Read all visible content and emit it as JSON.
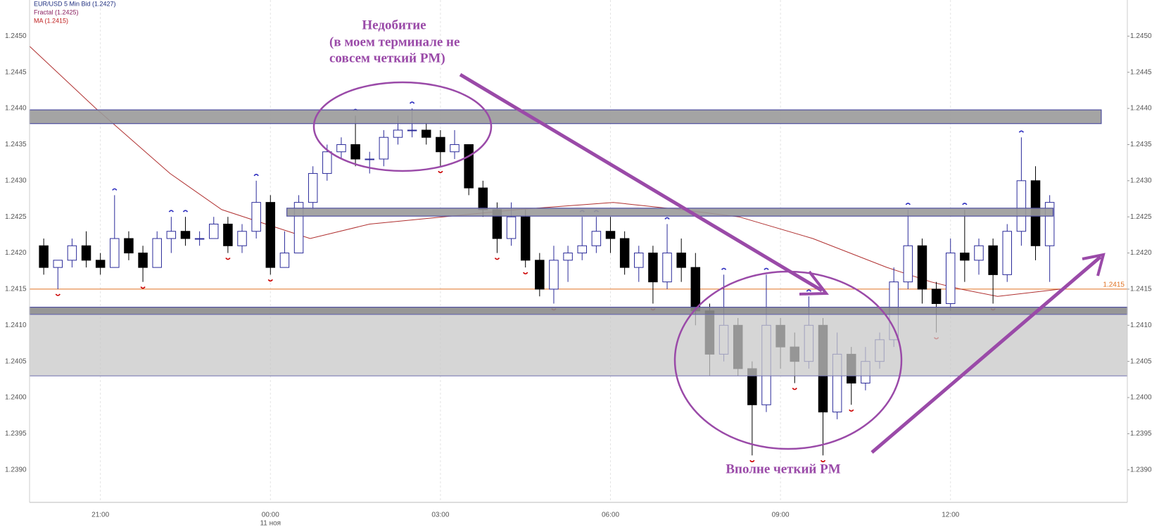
{
  "chart_data": {
    "type": "candlestick",
    "header": [
      "EUR/USD 5 Min Bid (1.2427)",
      "Fractal (1.2425)",
      "MA (1.2415)"
    ],
    "date_label": "11 ноя",
    "xlim": [
      -4.25,
      15.12
    ],
    "xticks": [
      {
        "value": -3,
        "label": "21:00"
      },
      {
        "value": 0,
        "label": "00:00"
      },
      {
        "value": 3,
        "label": "03:00"
      },
      {
        "value": 6,
        "label": "06:00"
      },
      {
        "value": 9,
        "label": "09:00"
      },
      {
        "value": 12,
        "label": "12:00"
      }
    ],
    "ylim": [
      1.23855,
      1.2455
    ],
    "yticks": [
      {
        "value": 1.239,
        "label": "1.2390"
      },
      {
        "value": 1.2395,
        "label": "1.2395"
      },
      {
        "value": 1.24,
        "label": "1.2400"
      },
      {
        "value": 1.2405,
        "label": "1.2405"
      },
      {
        "value": 1.241,
        "label": "1.2410"
      },
      {
        "value": 1.2415,
        "label": "1.2415"
      },
      {
        "value": 1.242,
        "label": "1.2420"
      },
      {
        "value": 1.2425,
        "label": "1.2425"
      },
      {
        "value": 1.243,
        "label": "1.2430"
      },
      {
        "value": 1.2435,
        "label": "1.2435"
      },
      {
        "value": 1.244,
        "label": "1.2440"
      },
      {
        "value": 1.2445,
        "label": "1.2445"
      },
      {
        "value": 1.245,
        "label": "1.2450"
      }
    ],
    "grid": true,
    "up_color": "#2b2b9a",
    "down_color": "#000000",
    "candles": {
      "x": [
        -4,
        -3.75,
        -3.5,
        -3.25,
        -3,
        -2.75,
        -2.5,
        -2.25,
        -2,
        -1.75,
        -1.5,
        -1.25,
        -1,
        -0.75,
        -0.5,
        -0.25,
        0,
        0.25,
        0.5,
        0.75,
        1,
        1.25,
        1.5,
        1.75,
        2,
        2.25,
        2.5,
        2.75,
        3,
        3.25,
        3.5,
        3.75,
        4,
        4.25,
        4.5,
        4.75,
        5,
        5.25,
        5.5,
        5.75,
        6,
        6.25,
        6.5,
        6.75,
        7,
        7.25,
        7.5,
        7.75,
        8,
        8.25,
        8.5,
        8.75,
        9,
        9.25,
        9.5,
        9.75,
        10,
        10.25,
        10.5,
        10.75,
        11,
        11.25,
        11.5,
        11.75,
        12,
        12.25,
        12.5,
        12.75,
        13,
        13.25,
        13.5,
        13.75
      ],
      "open": [
        1.2421,
        1.2418,
        1.2419,
        1.2421,
        1.2419,
        1.2418,
        1.2422,
        1.242,
        1.2418,
        1.2422,
        1.2423,
        1.2422,
        1.2422,
        1.2424,
        1.2421,
        1.2423,
        1.2427,
        1.2418,
        1.242,
        1.2427,
        1.2431,
        1.2434,
        1.2435,
        1.2433,
        1.2433,
        1.2436,
        1.2437,
        1.2437,
        1.2436,
        1.2434,
        1.2435,
        1.2429,
        1.2426,
        1.2422,
        1.2425,
        1.2419,
        1.2415,
        1.2419,
        1.242,
        1.2421,
        1.2423,
        1.2422,
        1.2418,
        1.242,
        1.2416,
        1.242,
        1.2418,
        1.2412,
        1.2406,
        1.241,
        1.2404,
        1.2399,
        1.241,
        1.2407,
        1.2405,
        1.241,
        1.2398,
        1.2406,
        1.2402,
        1.2405,
        1.2408,
        1.2416,
        1.2421,
        1.2415,
        1.2413,
        1.242,
        1.2419,
        1.2421,
        1.2417,
        1.2423,
        1.243,
        1.2421
      ],
      "high": [
        1.2422,
        1.2419,
        1.2422,
        1.2423,
        1.242,
        1.2428,
        1.2423,
        1.2421,
        1.2423,
        1.2425,
        1.2425,
        1.2423,
        1.2425,
        1.2425,
        1.2424,
        1.243,
        1.2428,
        1.2423,
        1.2428,
        1.2432,
        1.2435,
        1.2436,
        1.2439,
        1.2434,
        1.2437,
        1.2439,
        1.244,
        1.2438,
        1.2437,
        1.2437,
        1.2435,
        1.243,
        1.2427,
        1.2427,
        1.2426,
        1.242,
        1.2421,
        1.2421,
        1.2425,
        1.2425,
        1.2425,
        1.2423,
        1.2421,
        1.2421,
        1.2424,
        1.2422,
        1.242,
        1.2413,
        1.2417,
        1.2411,
        1.2405,
        1.2417,
        1.2411,
        1.2409,
        1.2414,
        1.2411,
        1.2409,
        1.2407,
        1.2407,
        1.2409,
        1.2418,
        1.2426,
        1.2422,
        1.2416,
        1.2422,
        1.2426,
        1.2422,
        1.2422,
        1.2424,
        1.2436,
        1.2432,
        1.2428
      ],
      "low": [
        1.2417,
        1.2415,
        1.2418,
        1.2418,
        1.2417,
        1.2418,
        1.2419,
        1.2416,
        1.2418,
        1.242,
        1.2421,
        1.2421,
        1.2422,
        1.242,
        1.242,
        1.2422,
        1.2417,
        1.2418,
        1.242,
        1.2426,
        1.243,
        1.2433,
        1.2432,
        1.2431,
        1.2432,
        1.2435,
        1.2436,
        1.2435,
        1.2432,
        1.2433,
        1.2428,
        1.2425,
        1.242,
        1.2421,
        1.2418,
        1.2414,
        1.2413,
        1.2416,
        1.2419,
        1.242,
        1.242,
        1.2417,
        1.2416,
        1.2413,
        1.2415,
        1.2416,
        1.241,
        1.2403,
        1.2405,
        1.2403,
        1.2392,
        1.2398,
        1.2404,
        1.2402,
        1.2404,
        1.2392,
        1.2397,
        1.2399,
        1.2401,
        1.2404,
        1.2407,
        1.2415,
        1.2413,
        1.2409,
        1.2412,
        1.2416,
        1.2417,
        1.2413,
        1.2416,
        1.2421,
        1.2419,
        1.2416
      ],
      "close": [
        1.2418,
        1.2419,
        1.2421,
        1.2419,
        1.2418,
        1.2422,
        1.242,
        1.2418,
        1.2422,
        1.2423,
        1.2422,
        1.2422,
        1.2424,
        1.2421,
        1.2423,
        1.2427,
        1.2418,
        1.242,
        1.2427,
        1.2431,
        1.2434,
        1.2435,
        1.2433,
        1.2433,
        1.2436,
        1.2437,
        1.2437,
        1.2436,
        1.2434,
        1.2435,
        1.2429,
        1.2426,
        1.2422,
        1.2425,
        1.2419,
        1.2415,
        1.2419,
        1.242,
        1.2421,
        1.2423,
        1.2422,
        1.2418,
        1.242,
        1.2416,
        1.242,
        1.2418,
        1.2412,
        1.2406,
        1.241,
        1.2404,
        1.2399,
        1.241,
        1.2407,
        1.2405,
        1.241,
        1.2398,
        1.2406,
        1.2402,
        1.2405,
        1.2408,
        1.2416,
        1.2421,
        1.2415,
        1.2413,
        1.242,
        1.2419,
        1.2421,
        1.2417,
        1.2423,
        1.243,
        1.2421,
        1.2427
      ]
    },
    "ma": {
      "color": "#b03030",
      "x": [
        -4.25,
        -3.08,
        -1.77,
        -0.86,
        -0.08,
        0.7,
        1.75,
        3.05,
        4.36,
        6.05,
        7.23,
        8.27,
        9.57,
        10.88,
        11.66,
        12.18,
        12.83,
        13.94
      ],
      "values": [
        1.24486,
        1.244,
        1.2431,
        1.2426,
        1.2424,
        1.2422,
        1.2424,
        1.2425,
        1.2426,
        1.2427,
        1.2426,
        1.2425,
        1.2422,
        1.2418,
        1.2416,
        1.2415,
        1.2414,
        1.2415
      ]
    },
    "fractals_up": {
      "color": "#3030c0",
      "x": [
        -2.75,
        -1.75,
        -1.5,
        -0.25,
        1.5,
        2.5,
        5.5,
        5.75,
        7,
        8,
        8.75,
        9.5,
        11.25,
        12.25,
        13.25
      ],
      "values": [
        1.2428,
        1.2425,
        1.2425,
        1.243,
        1.2439,
        1.244,
        1.2425,
        1.2425,
        1.2424,
        1.2417,
        1.2417,
        1.2414,
        1.2426,
        1.2426,
        1.2436
      ]
    },
    "fractals_down": {
      "color": "#cc0000",
      "x": [
        -3.75,
        -2.25,
        -0.75,
        0,
        3,
        4,
        4.5,
        5,
        6.75,
        8.5,
        9.25,
        9.75,
        10.25,
        11.75,
        12.75
      ],
      "values": [
        1.2415,
        1.2416,
        1.242,
        1.2417,
        1.2432,
        1.242,
        1.2418,
        1.2413,
        1.2413,
        1.2392,
        1.2402,
        1.2392,
        1.2399,
        1.2409,
        1.2413
      ]
    },
    "price_line": {
      "value": 1.2415,
      "label": "1.2415",
      "color": "#e07020"
    },
    "zones": [
      {
        "x0": -4.25,
        "x1": 14.66,
        "top": 1.24398,
        "bottom": 1.24379,
        "color": "#9a9a9a"
      },
      {
        "x0": 0.29,
        "x1": 13.81,
        "top": 1.24262,
        "bottom": 1.24251,
        "color": "#9a9a9a"
      },
      {
        "x0": -4.25,
        "x1": 15.12,
        "top": 1.24125,
        "bottom": 1.24115,
        "color": "#8c8c8c"
      },
      {
        "x0": -4.25,
        "x1": 15.12,
        "top": 1.24115,
        "bottom": 1.2403,
        "color": "#c8c8c8"
      }
    ],
    "annotations": {
      "top": [
        "Недобитие",
        "(в моем терминале не",
        "совсем четкий PM)"
      ],
      "bottom": "Вполне четкий PM"
    }
  }
}
